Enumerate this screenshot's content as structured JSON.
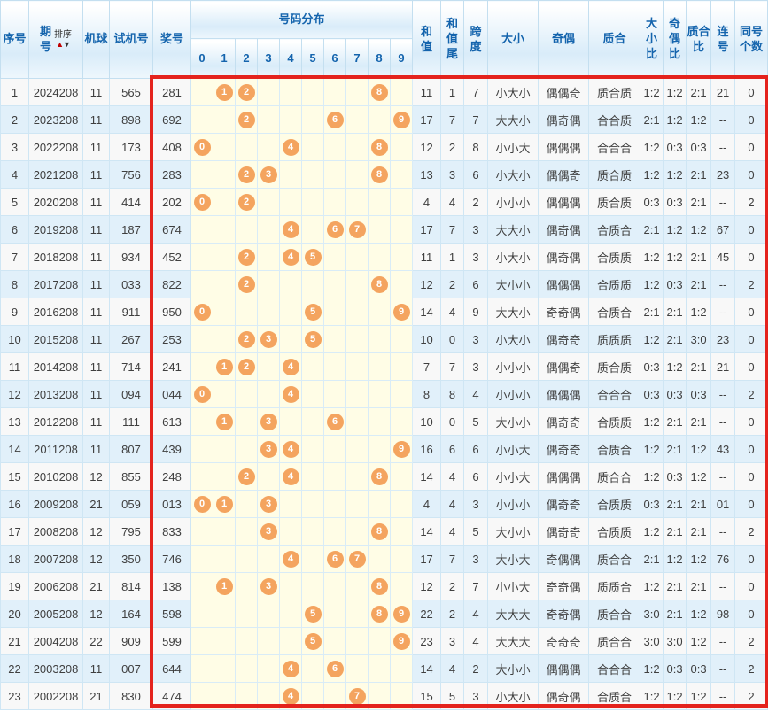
{
  "colors": {
    "highlight_border": "#e4231d",
    "ball_fill": "#f4a45f",
    "header_text": "#1464ad",
    "row_alt_blue": "#e1f0fa",
    "distribution_bg": "#fffde6"
  },
  "table": {
    "header": {
      "seq": "序号",
      "period": "期\n号",
      "sort_label": "排序",
      "sort_asc": "▲",
      "sort_desc": "▼",
      "machine": "机球",
      "test": "试机号",
      "prize": "奖号",
      "distribution": "号码分布",
      "sum": "和\n值",
      "sum_tail": "和\n值\n尾",
      "span": "跨\n度",
      "size": "大小",
      "parity": "奇偶",
      "prime": "质合",
      "size_ratio": "大小\n比",
      "parity_ratio": "奇偶\n比",
      "prime_ratio": "质合\n比",
      "consecutive": "连\n号",
      "same_count": "同号\n个数"
    },
    "digit_labels": [
      "0",
      "1",
      "2",
      "3",
      "4",
      "5",
      "6",
      "7",
      "8",
      "9"
    ],
    "rows": [
      {
        "seq": "1",
        "period": "2024208",
        "machine": "11",
        "test": "565",
        "prize": "281",
        "balls": [
          1,
          2,
          8
        ],
        "sum": "11",
        "sum_tail": "1",
        "span": "7",
        "size": "小大小",
        "parity": "偶偶奇",
        "prime": "质合质",
        "size_ratio": "1:2",
        "parity_ratio": "1:2",
        "prime_ratio": "2:1",
        "consec": "21",
        "same_count": "0"
      },
      {
        "seq": "2",
        "period": "2023208",
        "machine": "11",
        "test": "898",
        "prize": "692",
        "balls": [
          2,
          6,
          9
        ],
        "sum": "17",
        "sum_tail": "7",
        "span": "7",
        "size": "大大小",
        "parity": "偶奇偶",
        "prime": "合合质",
        "size_ratio": "2:1",
        "parity_ratio": "1:2",
        "prime_ratio": "1:2",
        "consec": "--",
        "same_count": "0"
      },
      {
        "seq": "3",
        "period": "2022208",
        "machine": "11",
        "test": "173",
        "prize": "408",
        "balls": [
          0,
          4,
          8
        ],
        "sum": "12",
        "sum_tail": "2",
        "span": "8",
        "size": "小小大",
        "parity": "偶偶偶",
        "prime": "合合合",
        "size_ratio": "1:2",
        "parity_ratio": "0:3",
        "prime_ratio": "0:3",
        "consec": "--",
        "same_count": "0"
      },
      {
        "seq": "4",
        "period": "2021208",
        "machine": "11",
        "test": "756",
        "prize": "283",
        "balls": [
          2,
          3,
          8
        ],
        "sum": "13",
        "sum_tail": "3",
        "span": "6",
        "size": "小大小",
        "parity": "偶偶奇",
        "prime": "质合质",
        "size_ratio": "1:2",
        "parity_ratio": "1:2",
        "prime_ratio": "2:1",
        "consec": "23",
        "same_count": "0"
      },
      {
        "seq": "5",
        "period": "2020208",
        "machine": "11",
        "test": "414",
        "prize": "202",
        "balls": [
          0,
          2
        ],
        "sum": "4",
        "sum_tail": "4",
        "span": "2",
        "size": "小小小",
        "parity": "偶偶偶",
        "prime": "质合质",
        "size_ratio": "0:3",
        "parity_ratio": "0:3",
        "prime_ratio": "2:1",
        "consec": "--",
        "same_count": "2"
      },
      {
        "seq": "6",
        "period": "2019208",
        "machine": "11",
        "test": "187",
        "prize": "674",
        "balls": [
          4,
          6,
          7
        ],
        "sum": "17",
        "sum_tail": "7",
        "span": "3",
        "size": "大大小",
        "parity": "偶奇偶",
        "prime": "合质合",
        "size_ratio": "2:1",
        "parity_ratio": "1:2",
        "prime_ratio": "1:2",
        "consec": "67",
        "same_count": "0"
      },
      {
        "seq": "7",
        "period": "2018208",
        "machine": "11",
        "test": "934",
        "prize": "452",
        "balls": [
          2,
          4,
          5
        ],
        "sum": "11",
        "sum_tail": "1",
        "span": "3",
        "size": "小大小",
        "parity": "偶奇偶",
        "prime": "合质质",
        "size_ratio": "1:2",
        "parity_ratio": "1:2",
        "prime_ratio": "2:1",
        "consec": "45",
        "same_count": "0"
      },
      {
        "seq": "8",
        "period": "2017208",
        "machine": "11",
        "test": "033",
        "prize": "822",
        "balls": [
          2,
          8
        ],
        "sum": "12",
        "sum_tail": "2",
        "span": "6",
        "size": "大小小",
        "parity": "偶偶偶",
        "prime": "合质质",
        "size_ratio": "1:2",
        "parity_ratio": "0:3",
        "prime_ratio": "2:1",
        "consec": "--",
        "same_count": "2"
      },
      {
        "seq": "9",
        "period": "2016208",
        "machine": "11",
        "test": "911",
        "prize": "950",
        "balls": [
          0,
          5,
          9
        ],
        "sum": "14",
        "sum_tail": "4",
        "span": "9",
        "size": "大大小",
        "parity": "奇奇偶",
        "prime": "合质合",
        "size_ratio": "2:1",
        "parity_ratio": "2:1",
        "prime_ratio": "1:2",
        "consec": "--",
        "same_count": "0"
      },
      {
        "seq": "10",
        "period": "2015208",
        "machine": "11",
        "test": "267",
        "prize": "253",
        "balls": [
          2,
          3,
          5
        ],
        "sum": "10",
        "sum_tail": "0",
        "span": "3",
        "size": "小大小",
        "parity": "偶奇奇",
        "prime": "质质质",
        "size_ratio": "1:2",
        "parity_ratio": "2:1",
        "prime_ratio": "3:0",
        "consec": "23",
        "same_count": "0"
      },
      {
        "seq": "11",
        "period": "2014208",
        "machine": "11",
        "test": "714",
        "prize": "241",
        "balls": [
          1,
          2,
          4
        ],
        "sum": "7",
        "sum_tail": "7",
        "span": "3",
        "size": "小小小",
        "parity": "偶偶奇",
        "prime": "质合质",
        "size_ratio": "0:3",
        "parity_ratio": "1:2",
        "prime_ratio": "2:1",
        "consec": "21",
        "same_count": "0"
      },
      {
        "seq": "12",
        "period": "2013208",
        "machine": "11",
        "test": "094",
        "prize": "044",
        "balls": [
          0,
          4
        ],
        "sum": "8",
        "sum_tail": "8",
        "span": "4",
        "size": "小小小",
        "parity": "偶偶偶",
        "prime": "合合合",
        "size_ratio": "0:3",
        "parity_ratio": "0:3",
        "prime_ratio": "0:3",
        "consec": "--",
        "same_count": "2"
      },
      {
        "seq": "13",
        "period": "2012208",
        "machine": "11",
        "test": "111",
        "prize": "613",
        "balls": [
          1,
          3,
          6
        ],
        "sum": "10",
        "sum_tail": "0",
        "span": "5",
        "size": "大小小",
        "parity": "偶奇奇",
        "prime": "合质质",
        "size_ratio": "1:2",
        "parity_ratio": "2:1",
        "prime_ratio": "2:1",
        "consec": "--",
        "same_count": "0"
      },
      {
        "seq": "14",
        "period": "2011208",
        "machine": "11",
        "test": "807",
        "prize": "439",
        "balls": [
          3,
          4,
          9
        ],
        "sum": "16",
        "sum_tail": "6",
        "span": "6",
        "size": "小小大",
        "parity": "偶奇奇",
        "prime": "合质合",
        "size_ratio": "1:2",
        "parity_ratio": "2:1",
        "prime_ratio": "1:2",
        "consec": "43",
        "same_count": "0"
      },
      {
        "seq": "15",
        "period": "2010208",
        "machine": "12",
        "test": "855",
        "prize": "248",
        "balls": [
          2,
          4,
          8
        ],
        "sum": "14",
        "sum_tail": "4",
        "span": "6",
        "size": "小小大",
        "parity": "偶偶偶",
        "prime": "质合合",
        "size_ratio": "1:2",
        "parity_ratio": "0:3",
        "prime_ratio": "1:2",
        "consec": "--",
        "same_count": "0"
      },
      {
        "seq": "16",
        "period": "2009208",
        "machine": "21",
        "test": "059",
        "prize": "013",
        "balls": [
          0,
          1,
          3
        ],
        "sum": "4",
        "sum_tail": "4",
        "span": "3",
        "size": "小小小",
        "parity": "偶奇奇",
        "prime": "合质质",
        "size_ratio": "0:3",
        "parity_ratio": "2:1",
        "prime_ratio": "2:1",
        "consec": "01",
        "same_count": "0"
      },
      {
        "seq": "17",
        "period": "2008208",
        "machine": "12",
        "test": "795",
        "prize": "833",
        "balls": [
          3,
          8
        ],
        "sum": "14",
        "sum_tail": "4",
        "span": "5",
        "size": "大小小",
        "parity": "偶奇奇",
        "prime": "合质质",
        "size_ratio": "1:2",
        "parity_ratio": "2:1",
        "prime_ratio": "2:1",
        "consec": "--",
        "same_count": "2"
      },
      {
        "seq": "18",
        "period": "2007208",
        "machine": "12",
        "test": "350",
        "prize": "746",
        "balls": [
          4,
          6,
          7
        ],
        "sum": "17",
        "sum_tail": "7",
        "span": "3",
        "size": "大小大",
        "parity": "奇偶偶",
        "prime": "质合合",
        "size_ratio": "2:1",
        "parity_ratio": "1:2",
        "prime_ratio": "1:2",
        "consec": "76",
        "same_count": "0"
      },
      {
        "seq": "19",
        "period": "2006208",
        "machine": "21",
        "test": "814",
        "prize": "138",
        "balls": [
          1,
          3,
          8
        ],
        "sum": "12",
        "sum_tail": "2",
        "span": "7",
        "size": "小小大",
        "parity": "奇奇偶",
        "prime": "质质合",
        "size_ratio": "1:2",
        "parity_ratio": "2:1",
        "prime_ratio": "2:1",
        "consec": "--",
        "same_count": "0"
      },
      {
        "seq": "20",
        "period": "2005208",
        "machine": "12",
        "test": "164",
        "prize": "598",
        "balls": [
          5,
          8,
          9
        ],
        "sum": "22",
        "sum_tail": "2",
        "span": "4",
        "size": "大大大",
        "parity": "奇奇偶",
        "prime": "质合合",
        "size_ratio": "3:0",
        "parity_ratio": "2:1",
        "prime_ratio": "1:2",
        "consec": "98",
        "same_count": "0"
      },
      {
        "seq": "21",
        "period": "2004208",
        "machine": "22",
        "test": "909",
        "prize": "599",
        "balls": [
          5,
          9
        ],
        "sum": "23",
        "sum_tail": "3",
        "span": "4",
        "size": "大大大",
        "parity": "奇奇奇",
        "prime": "质合合",
        "size_ratio": "3:0",
        "parity_ratio": "3:0",
        "prime_ratio": "1:2",
        "consec": "--",
        "same_count": "2"
      },
      {
        "seq": "22",
        "period": "2003208",
        "machine": "11",
        "test": "007",
        "prize": "644",
        "balls": [
          4,
          6
        ],
        "sum": "14",
        "sum_tail": "4",
        "span": "2",
        "size": "大小小",
        "parity": "偶偶偶",
        "prime": "合合合",
        "size_ratio": "1:2",
        "parity_ratio": "0:3",
        "prime_ratio": "0:3",
        "consec": "--",
        "same_count": "2"
      },
      {
        "seq": "23",
        "period": "2002208",
        "machine": "21",
        "test": "830",
        "prize": "474",
        "balls": [
          4,
          7
        ],
        "sum": "15",
        "sum_tail": "5",
        "span": "3",
        "size": "小大小",
        "parity": "偶奇偶",
        "prime": "合质合",
        "size_ratio": "1:2",
        "parity_ratio": "1:2",
        "prime_ratio": "1:2",
        "consec": "--",
        "same_count": "2"
      }
    ]
  }
}
